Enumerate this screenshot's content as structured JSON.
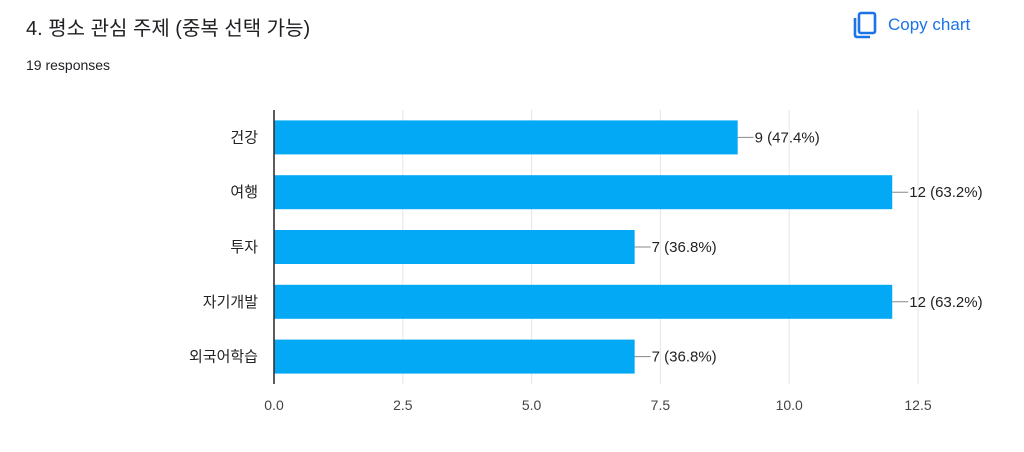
{
  "header": {
    "title": "4. 평소 관심 주제 (중복 선택 가능)",
    "responses": "19 responses",
    "copy_label": "Copy chart",
    "copy_icon": "copy-icon"
  },
  "colors": {
    "bar": "#03a9f4",
    "accent": "#1a73e8",
    "grid": "#e6e6e6",
    "axis": "#333333"
  },
  "chart_data": {
    "type": "bar",
    "orientation": "horizontal",
    "categories": [
      "건강",
      "여행",
      "투자",
      "자기개발",
      "외국어학습"
    ],
    "values": [
      9,
      12,
      7,
      12,
      7
    ],
    "data_labels": [
      "9 (47.4%)",
      "12 (63.2%)",
      "7 (36.8%)",
      "12 (63.2%)",
      "7 (36.8%)"
    ],
    "xlim": [
      0,
      12.5
    ],
    "xticks": [
      0,
      2.5,
      5,
      7.5,
      10,
      12.5
    ],
    "xtick_labels": [
      "0.0",
      "2.5",
      "5.0",
      "7.5",
      "10.0",
      "12.5"
    ],
    "grid": true,
    "legend": "none",
    "title": "4. 평소 관심 주제 (중복 선택 가능)",
    "xlabel": "",
    "ylabel": ""
  }
}
